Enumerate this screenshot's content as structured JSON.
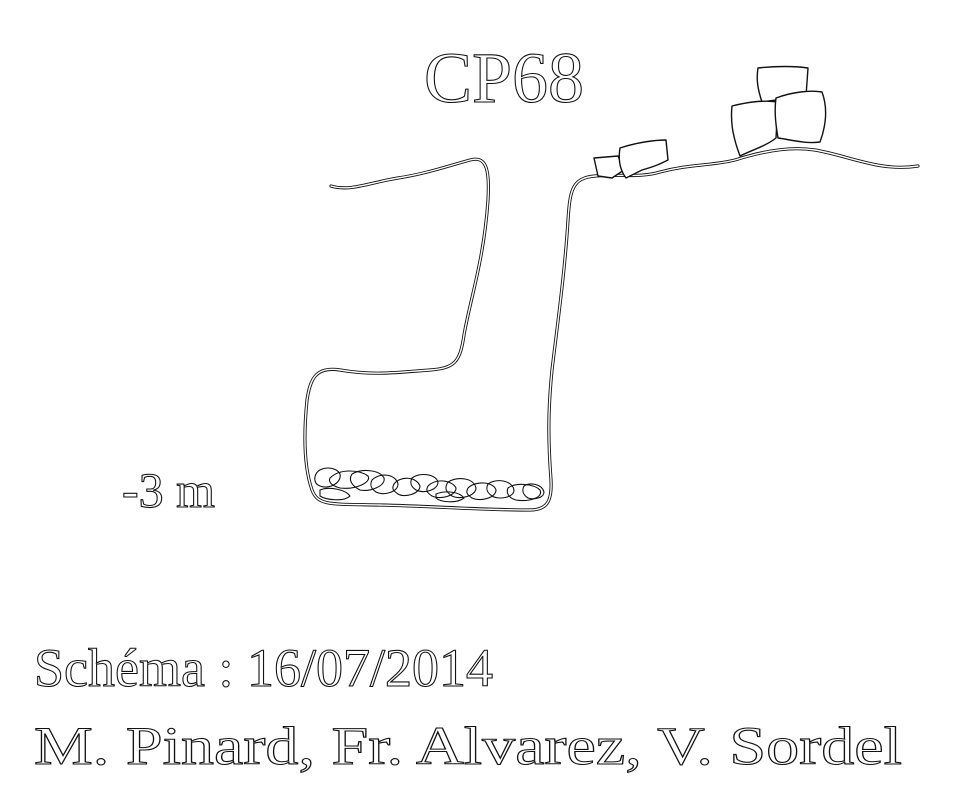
{
  "title": "CP68",
  "depth_label": "-3 m",
  "credits": {
    "schema_line": "Schéma : 16/07/2014",
    "authors_line": "M. Pinard, Fr. Alvarez, V. Sordel"
  }
}
